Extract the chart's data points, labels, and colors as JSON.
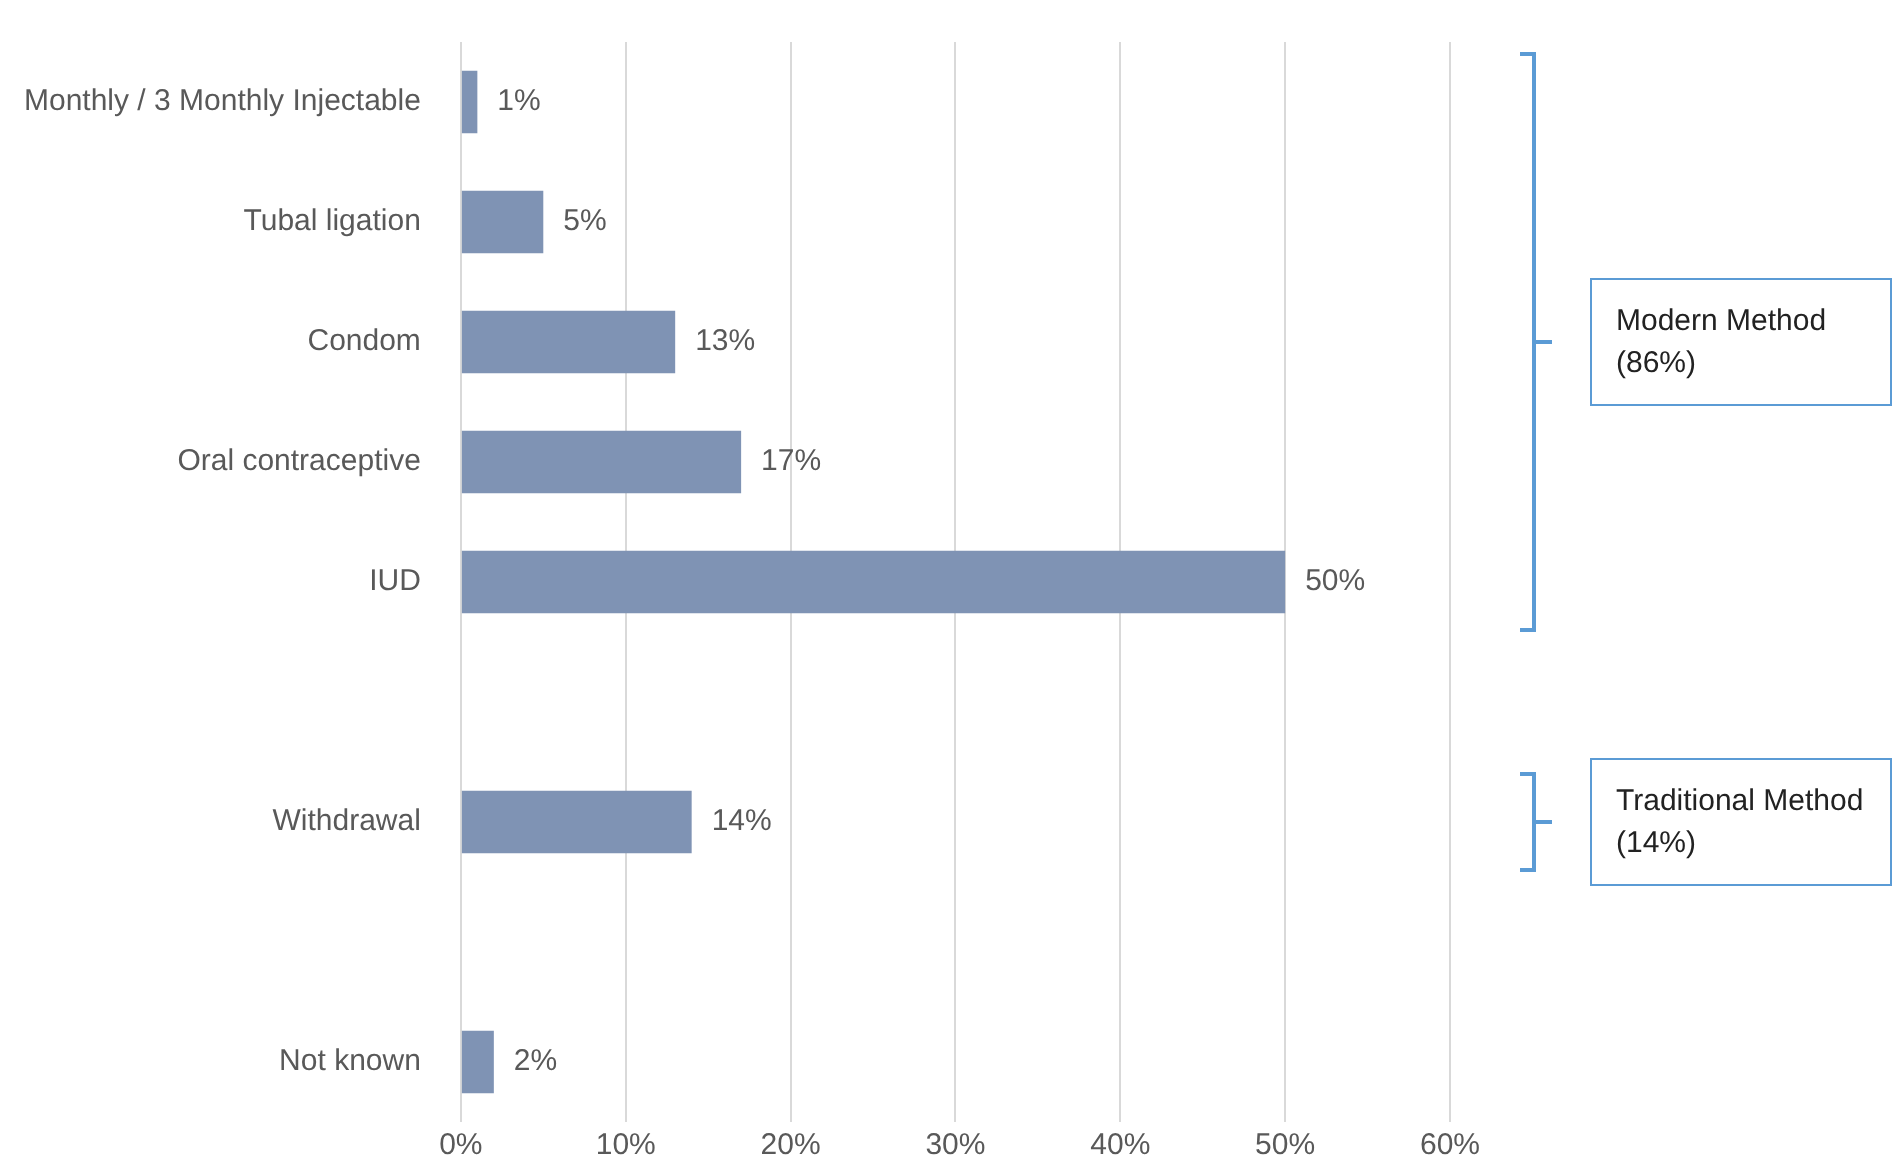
{
  "chart_data": {
    "type": "bar",
    "orientation": "horizontal",
    "categories": [
      "Monthly / 3 Monthly Injectable",
      "Tubal ligation",
      "Condom",
      "Oral contraceptive",
      "IUD",
      null,
      "Withdrawal",
      null,
      "Not known"
    ],
    "values": [
      1,
      5,
      13,
      17,
      50,
      null,
      14,
      null,
      2
    ],
    "value_labels": [
      "1%",
      "5%",
      "13%",
      "17%",
      "50%",
      null,
      "14%",
      null,
      "2%"
    ],
    "color": "#7f93b4",
    "xlim": [
      0,
      60
    ],
    "xticks": [
      {
        "value": 0,
        "label": "0%"
      },
      {
        "value": 10,
        "label": "10%"
      },
      {
        "value": 20,
        "label": "20%"
      },
      {
        "value": 30,
        "label": "30%"
      },
      {
        "value": 40,
        "label": "40%"
      },
      {
        "value": 50,
        "label": "50%"
      },
      {
        "value": 60,
        "label": "60%"
      }
    ],
    "grid": "x",
    "legend": false,
    "annotations": [
      "Modern Method (86%)",
      "Traditional Method (14%)"
    ]
  }
}
